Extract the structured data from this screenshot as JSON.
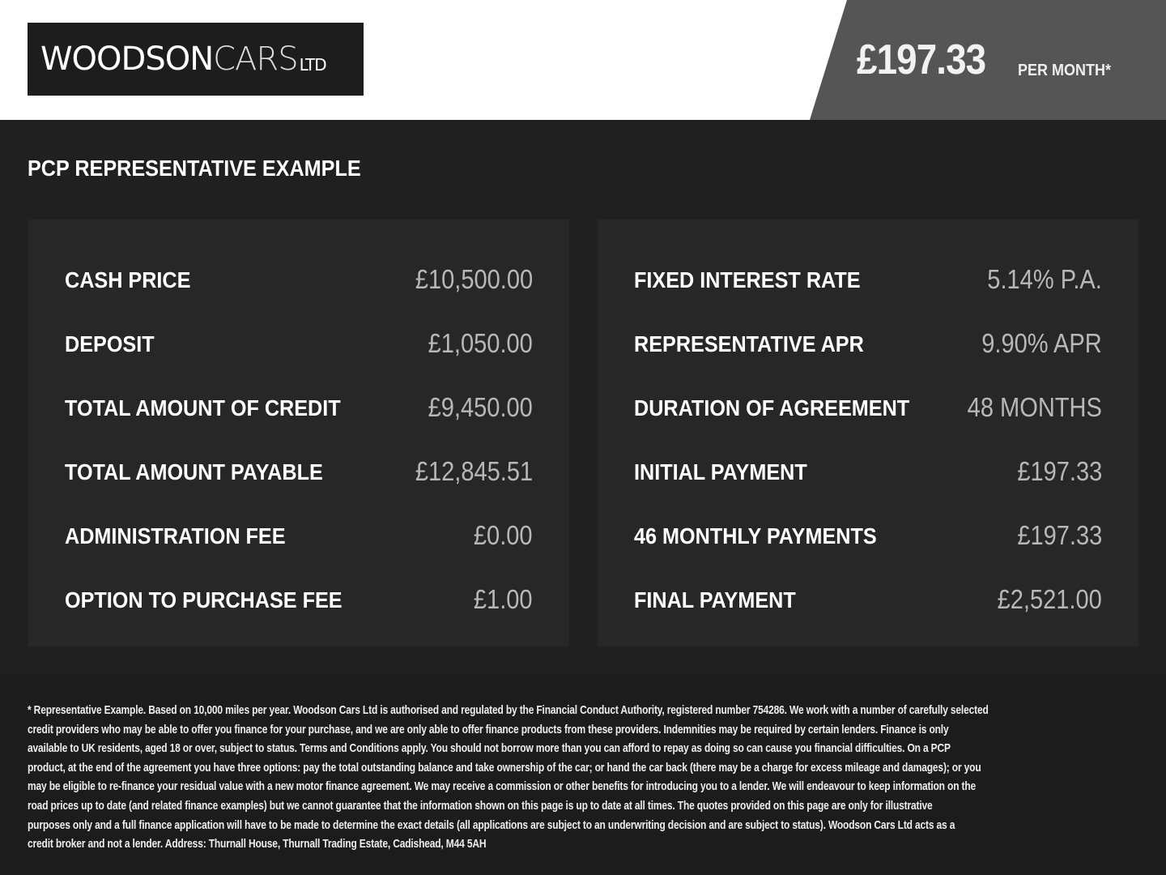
{
  "header": {
    "logo": {
      "bold": "WOODSON",
      "light": "CARS",
      "suffix": "LTD"
    },
    "price": "£197.33",
    "per_month": "PER MONTH*",
    "colors": {
      "banner": "#555555",
      "header_bg": "#ffffff",
      "body_bg": "#202020"
    }
  },
  "title": "PCP REPRESENTATIVE EXAMPLE",
  "left_panel": [
    {
      "label": "CASH PRICE",
      "value": "£10,500.00"
    },
    {
      "label": "DEPOSIT",
      "value": "£1,050.00"
    },
    {
      "label": "TOTAL AMOUNT OF CREDIT",
      "value": "£9,450.00"
    },
    {
      "label": "TOTAL AMOUNT PAYABLE",
      "value": "£12,845.51"
    },
    {
      "label": "ADMINISTRATION FEE",
      "value": "£0.00"
    },
    {
      "label": "OPTION TO PURCHASE FEE",
      "value": "£1.00"
    }
  ],
  "right_panel": [
    {
      "label": "FIXED INTEREST RATE",
      "value": "5.14% P.A."
    },
    {
      "label": "REPRESENTATIVE APR",
      "value": "9.90% APR"
    },
    {
      "label": "DURATION OF AGREEMENT",
      "value": "48 MONTHS"
    },
    {
      "label": "INITIAL PAYMENT",
      "value": "£197.33"
    },
    {
      "label": "46 MONTHLY PAYMENTS",
      "value": "£197.33"
    },
    {
      "label": "FINAL PAYMENT",
      "value": "£2,521.00"
    }
  ],
  "footer": {
    "lines": [
      "* Representative Example. Based on 10,000 miles per year. Woodson Cars Ltd is authorised and regulated by the Financial Conduct Authority, registered number 754286. We work with a number of carefully selected",
      "credit providers who may be able to offer you finance for your purchase, and we are only able to offer finance products from these providers. Indemnities may be required by certain lenders. Finance is only",
      "available to UK residents, aged 18 or over, subject to status. Terms and Conditions apply. You should not borrow more than you can afford to repay as doing so can cause you financial difficulties. On a PCP",
      "product, at the end of the agreement you have three options: pay the total outstanding balance and take ownership of the car; or hand the car back (there may be a charge for excess mileage and damages); or you",
      "may be eligible to re-finance your residual value with a new motor finance agreement. We may receive a commission or other benefits for introducing you to a lender. We will endeavour to keep information on the",
      "road prices up to date (and related finance examples) but we cannot guarantee that the information shown on this page is up to date at all times. The quotes provided on this page are only for illustrative",
      "purposes only and a full finance application will have to be made to determine the exact details (all applications are subject to an underwriting decision and are subject to status). Woodson Cars Ltd acts as a",
      "credit broker and not a lender. Address: Thurnall House, Thurnall Trading Estate, Cadishead, M44 5AH"
    ]
  }
}
